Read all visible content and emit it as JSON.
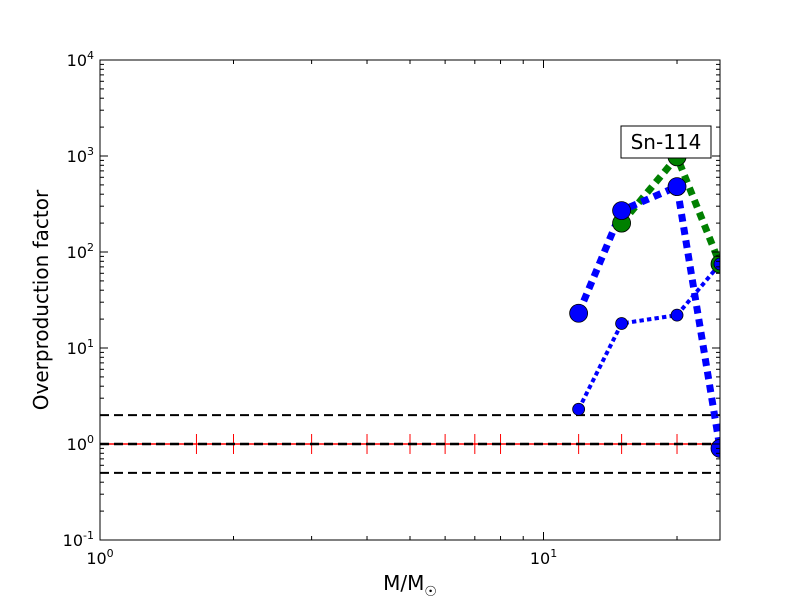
{
  "chart_data": {
    "type": "line",
    "title": "",
    "xlabel": "M/M",
    "xlabel_subscript": "☉",
    "ylabel": "Overproduction factor",
    "annotation": "Sn-114",
    "xscale": "log",
    "yscale": "log",
    "xlim": [
      1,
      25
    ],
    "ylim": [
      0.1,
      10000
    ],
    "x_ticks": [
      {
        "value": 1,
        "base": "10",
        "exp": "0"
      },
      {
        "value": 10,
        "base": "10",
        "exp": "1"
      }
    ],
    "y_ticks": [
      {
        "value": 0.1,
        "base": "10",
        "exp": "-1"
      },
      {
        "value": 1,
        "base": "10",
        "exp": "0"
      },
      {
        "value": 10,
        "base": "10",
        "exp": "1"
      },
      {
        "value": 100,
        "base": "10",
        "exp": "2"
      },
      {
        "value": 1000,
        "base": "10",
        "exp": "3"
      },
      {
        "value": 10000,
        "base": "10",
        "exp": "4"
      }
    ],
    "grid": false,
    "reference_lines": [
      {
        "y": 2,
        "color": "#000000",
        "style": "dashed"
      },
      {
        "y": 1,
        "color": "#000000",
        "style": "dashed"
      },
      {
        "y": 0.5,
        "color": "#000000",
        "style": "dashed"
      }
    ],
    "red_line": {
      "y": 1,
      "color": "#ff0000",
      "marker_x": [
        1.65,
        2,
        3,
        4,
        5,
        6,
        7,
        8,
        12,
        15,
        20
      ]
    },
    "series": [
      {
        "color": "#008000",
        "style": "dotted",
        "width": 7,
        "marker_radius": 9,
        "x": [
          15,
          20,
          25
        ],
        "y": [
          200,
          980,
          75
        ]
      },
      {
        "color": "#0000ff",
        "style": "dotted",
        "width": 7,
        "marker_radius": 9,
        "x": [
          12,
          15,
          20,
          25
        ],
        "y": [
          23,
          270,
          480,
          0.9
        ]
      },
      {
        "color": "#0000ff",
        "style": "dotted",
        "width": 4,
        "marker_radius": 6,
        "x": [
          12,
          15,
          20,
          25
        ],
        "y": [
          2.3,
          18,
          22,
          75
        ]
      }
    ]
  }
}
